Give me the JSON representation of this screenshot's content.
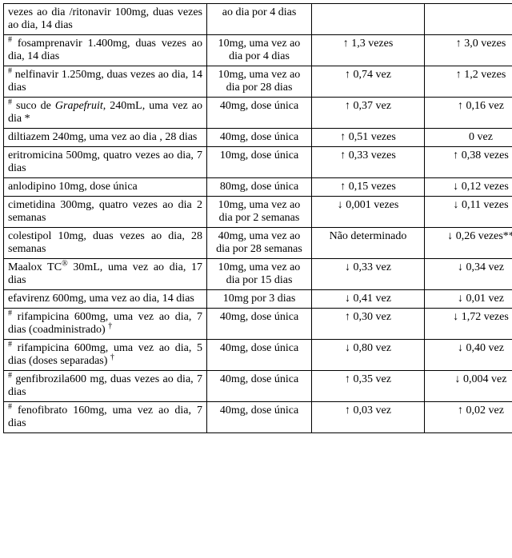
{
  "rows": [
    {
      "c1": "vezes ao dia /ritonavir 100mg, duas vezes ao dia, 14 dias",
      "c2": "ao dia por 4 dias",
      "c3": "",
      "c4": ""
    },
    {
      "sup1": "#",
      "c1": " fosamprenavir 1.400mg, duas vezes ao dia, 14 dias",
      "c2": "10mg, uma vez ao dia por 4 dias",
      "c3": "↑ 1,3 vezes",
      "c4": "↑ 3,0 vezes"
    },
    {
      "sup1": "#",
      "c1": " nelfinavir 1.250mg, duas vezes ao dia, 14 dias",
      "c2": "10mg, uma vez ao dia por 28 dias",
      "c3": "↑ 0,74 vez",
      "c4": "↑ 1,2 vezes"
    },
    {
      "sup1": "#",
      "c1_pre": " suco de ",
      "c1_it": "Grapefruit",
      "c1_post": ", 240mL, uma vez ao dia *",
      "c2": "40mg, dose única",
      "c3": "↑ 0,37 vez",
      "c4": "↑ 0,16 vez"
    },
    {
      "c1": "diltiazem 240mg, uma vez ao dia , 28 dias",
      "c2": "40mg, dose única",
      "c3": "↑ 0,51 vezes",
      "c4": "0 vez"
    },
    {
      "c1": "eritromicina 500mg, quatro vezes ao dia, 7 dias",
      "c2": "10mg, dose única",
      "c3": "↑ 0,33 vezes",
      "c4": "↑ 0,38 vezes"
    },
    {
      "c1": "anlodipino 10mg, dose única",
      "c2": "80mg, dose única",
      "c3": "↑ 0,15 vezes",
      "c4": "↓ 0,12 vezes"
    },
    {
      "c1": "cimetidina 300mg, quatro vezes ao dia 2 semanas",
      "c2": "10mg, uma vez ao dia por 2 semanas",
      "c3": "↓ 0,001 vezes",
      "c4": "↓ 0,11 vezes"
    },
    {
      "c1": "colestipol 10mg, duas vezes ao dia, 28 semanas",
      "c2": "40mg, uma vez ao dia por 28 semanas",
      "c3": "Não determinado",
      "c4": "↓ 0,26 vezes**"
    },
    {
      "c1_pre": "Maalox TC",
      "sup_mid": "®",
      "c1_post": " 30mL, uma vez ao dia, 17 dias",
      "c2": "10mg, uma vez ao dia por 15 dias",
      "c3": "↓ 0,33 vez",
      "c4": "↓ 0,34 vez"
    },
    {
      "c1": "efavirenz 600mg, uma vez ao dia, 14 dias",
      "c2": "10mg por 3 dias",
      "c3": "↓ 0,41 vez",
      "c4": "↓ 0,01 vez"
    },
    {
      "sup1": "#",
      "c1": " rifampicina 600mg, uma vez ao dia, 7 dias (coadministrado) ",
      "sup_end": "†",
      "c2": "40mg, dose única",
      "c3": "↑ 0,30 vez",
      "c4": "↓ 1,72 vezes"
    },
    {
      "sup1": "#",
      "c1": " rifampicina 600mg, uma vez ao dia, 5 dias (doses separadas) ",
      "sup_end": "†",
      "c2": "40mg, dose única",
      "c3": "↓ 0,80 vez",
      "c4": "↓ 0,40 vez"
    },
    {
      "sup1": "#",
      "c1": " genfibrozila600 mg, duas vezes ao dia, 7 dias",
      "c2": "40mg, dose única",
      "c3": "↑ 0,35 vez",
      "c4": "↓ 0,004 vez"
    },
    {
      "sup1": "#",
      "c1": " fenofibrato 160mg, uma vez ao dia, 7 dias",
      "c2": "40mg, dose única",
      "c3": "↑ 0,03 vez",
      "c4": "↑ 0,02 vez"
    }
  ]
}
